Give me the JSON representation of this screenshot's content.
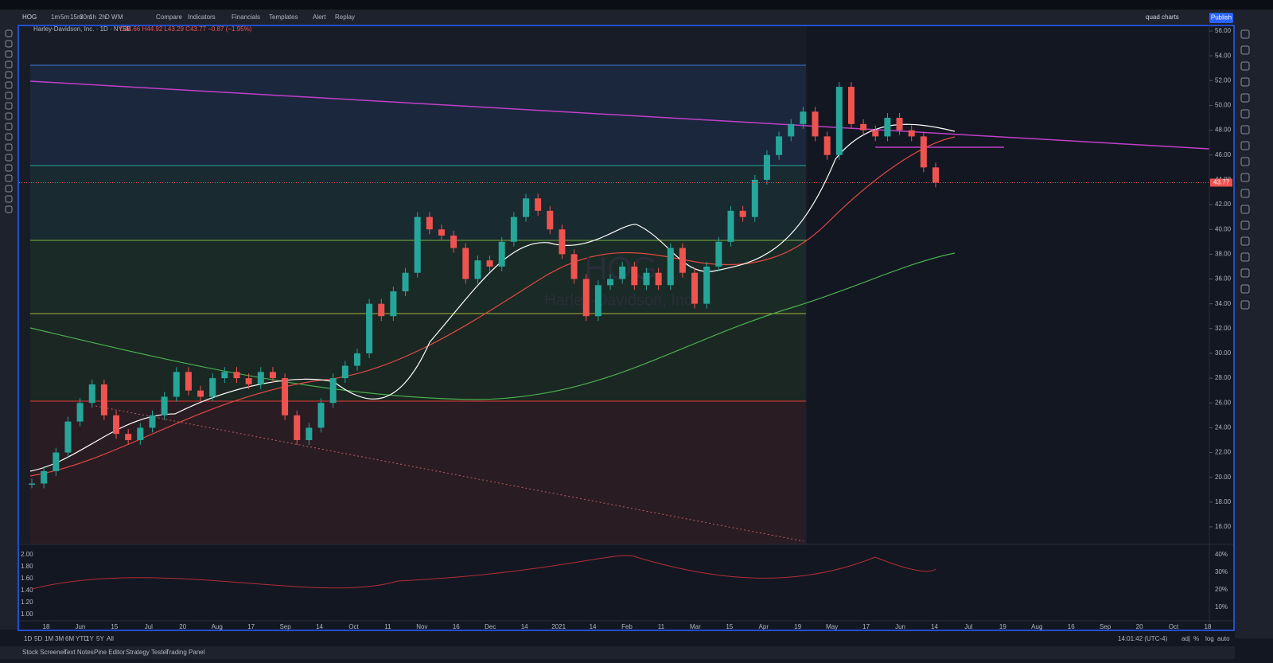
{
  "toolbar": {
    "symbol": "HOG",
    "intervals": [
      "1m",
      "5m",
      "15m",
      "30m",
      "1h",
      "2h",
      "D",
      "W",
      "M"
    ],
    "buttons": [
      "Compare",
      "Indicators",
      "Financials",
      "Templates",
      "Alert",
      "Replay"
    ],
    "layout_name": "quad charts",
    "publish": "Publish"
  },
  "legend": {
    "title": "Harley-Davidson, Inc. · 1D · NYSE",
    "ohlc": "O44.66 H44.92 L43.29 C43.77 −0.87 (−1.95%)"
  },
  "watermark": {
    "symbol": "HOG",
    "name": "Harley-Davidson, Inc."
  },
  "chart_data": {
    "type": "candlestick",
    "values": [
      19.5,
      20.5,
      22,
      24.5,
      26,
      27.5,
      25,
      23.5,
      23,
      24,
      25,
      26.5,
      28.5,
      27,
      26.5,
      28,
      28.5,
      28,
      27.5,
      28.5,
      28,
      25,
      23,
      24,
      26,
      28,
      29,
      30,
      34,
      33,
      35,
      36.5,
      41,
      40,
      39.5,
      38.5,
      36,
      37.5,
      37,
      39,
      41,
      42.5,
      41.5,
      40,
      38,
      36,
      33,
      35.5,
      36,
      37,
      35.5,
      36.5,
      35.5,
      38.5,
      36.5,
      34,
      37,
      39,
      41.5,
      41,
      44,
      46,
      47.5,
      48.5,
      49.5,
      47.5,
      46,
      51.5,
      48.5,
      48,
      47.5,
      49,
      48,
      47.5,
      45,
      43.77
    ],
    "ylim": [
      16,
      56
    ],
    "yticks": [
      {
        "value": 16,
        "label": "16.00"
      },
      {
        "value": 18,
        "label": "18.00"
      },
      {
        "value": 20,
        "label": "20.00"
      },
      {
        "value": 22,
        "label": "22.00"
      },
      {
        "value": 24,
        "label": "24.00"
      },
      {
        "value": 26,
        "label": "26.00"
      },
      {
        "value": 28,
        "label": "28.00"
      },
      {
        "value": 30,
        "label": "30.00"
      },
      {
        "value": 32,
        "label": "32.00"
      },
      {
        "value": 34,
        "label": "34.00"
      },
      {
        "value": 36,
        "label": "36.00"
      },
      {
        "value": 38,
        "label": "38.00"
      },
      {
        "value": 40,
        "label": "40.00"
      },
      {
        "value": 42,
        "label": "42.00"
      },
      {
        "value": 44,
        "label": "44.00"
      },
      {
        "value": 46,
        "label": "46.00"
      },
      {
        "value": 48,
        "label": "48.00"
      },
      {
        "value": 50,
        "label": "50.00"
      },
      {
        "value": 52,
        "label": "52.00"
      },
      {
        "value": 54,
        "label": "54.00"
      },
      {
        "value": 56,
        "label": "56.00"
      }
    ],
    "time_labels": [
      "18",
      "Jun",
      "15",
      "Jul",
      "20",
      "Aug",
      "17",
      "Sep",
      "14",
      "Oct",
      "11",
      "Nov",
      "16",
      "Dec",
      "14",
      "2021",
      "14",
      "Feb",
      "11",
      "Mar",
      "15",
      "Apr",
      "19",
      "May",
      "17",
      "Jun",
      "14",
      "Jul",
      "19",
      "Aug",
      "16",
      "Sep",
      "20",
      "Oct",
      "18"
    ],
    "last_price": {
      "value": 43.77,
      "label": "43.77"
    }
  },
  "volume_pane": {
    "left_ticks": [
      "2.00",
      "1.80",
      "1.60",
      "1.40",
      "1.20",
      "1.00"
    ],
    "right_ticks": [
      "40%",
      "30%",
      "20%",
      "10%"
    ]
  },
  "bottom_bar": {
    "ranges": [
      "1D",
      "5D",
      "1M",
      "3M",
      "6M",
      "YTD",
      "1Y",
      "5Y",
      "All"
    ],
    "clock": "14:01:42 (UTC-4)",
    "options": [
      "adj",
      "%",
      "log",
      "auto"
    ]
  },
  "tabs": [
    "Stock Screener",
    "Text Notes",
    "Pine Editor",
    "Strategy Tester",
    "Trading Panel"
  ]
}
